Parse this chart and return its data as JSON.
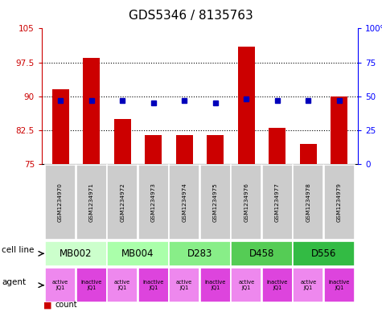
{
  "title": "GDS5346 / 8135763",
  "samples": [
    "GSM1234970",
    "GSM1234971",
    "GSM1234972",
    "GSM1234973",
    "GSM1234974",
    "GSM1234975",
    "GSM1234976",
    "GSM1234977",
    "GSM1234978",
    "GSM1234979"
  ],
  "bar_values": [
    91.5,
    98.5,
    85.0,
    81.5,
    81.5,
    81.5,
    101.0,
    83.0,
    79.5,
    90.0
  ],
  "dot_pct": [
    47,
    47,
    47,
    45,
    47,
    45,
    48,
    47,
    47,
    47
  ],
  "bar_color": "#cc0000",
  "dot_color": "#0000bb",
  "ylim_left": [
    75,
    105
  ],
  "yticks_left": [
    75,
    82.5,
    90,
    97.5,
    105
  ],
  "ytick_labels_left": [
    "75",
    "82.5",
    "90",
    "97.5",
    "105"
  ],
  "yticks_right": [
    0,
    25,
    50,
    75,
    100
  ],
  "ytick_labels_right": [
    "0",
    "25",
    "50",
    "75",
    "100%"
  ],
  "cell_lines": [
    {
      "label": "MB002",
      "cols": [
        0,
        1
      ],
      "color": "#ccffcc"
    },
    {
      "label": "MB004",
      "cols": [
        2,
        3
      ],
      "color": "#aaffaa"
    },
    {
      "label": "D283",
      "cols": [
        4,
        5
      ],
      "color": "#88ee88"
    },
    {
      "label": "D458",
      "cols": [
        6,
        7
      ],
      "color": "#55cc55"
    },
    {
      "label": "D556",
      "cols": [
        8,
        9
      ],
      "color": "#33bb44"
    }
  ],
  "agents": [
    "active\nJQ1",
    "inactive\nJQ1",
    "active\nJQ1",
    "inactive\nJQ1",
    "active\nJQ1",
    "inactive\nJQ1",
    "active\nJQ1",
    "inactive\nJQ1",
    "active\nJQ1",
    "inactive\nJQ1"
  ],
  "agent_active_color": "#ee88ee",
  "agent_inactive_color": "#dd44dd",
  "gsm_row_color": "#cccccc",
  "background_color": "#ffffff",
  "bar_width": 0.55
}
